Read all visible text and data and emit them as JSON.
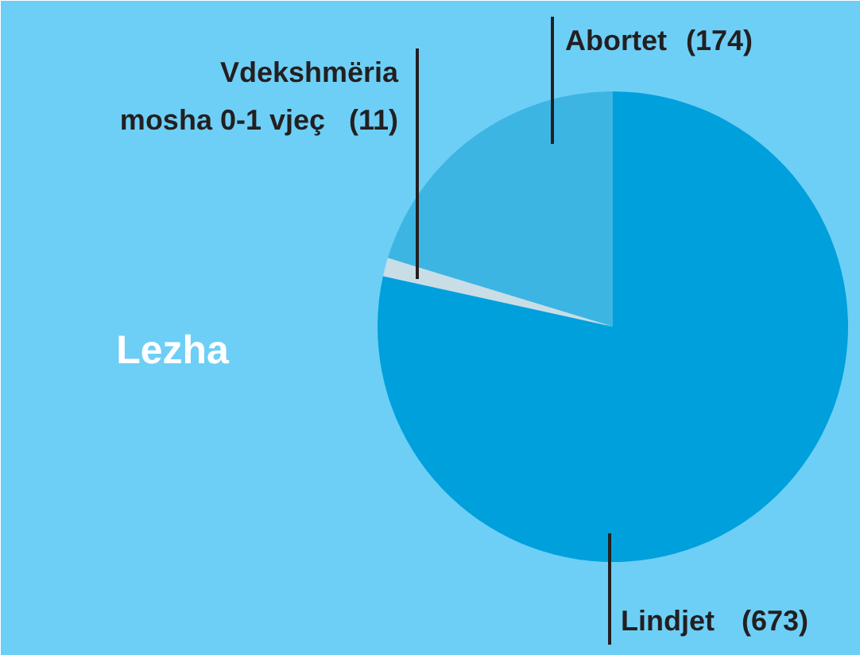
{
  "chart_data": {
    "type": "pie",
    "title": "Lezha",
    "categories": [
      "Abortet",
      "Vdekshmëria mosha 0-1 vjeç",
      "Lindjet"
    ],
    "values": [
      174,
      11,
      673
    ],
    "colors": [
      "#3db5e3",
      "#c9dde6",
      "#00a0dc"
    ],
    "value_labels": [
      "(174)",
      "(11)",
      "(673)"
    ]
  }
}
